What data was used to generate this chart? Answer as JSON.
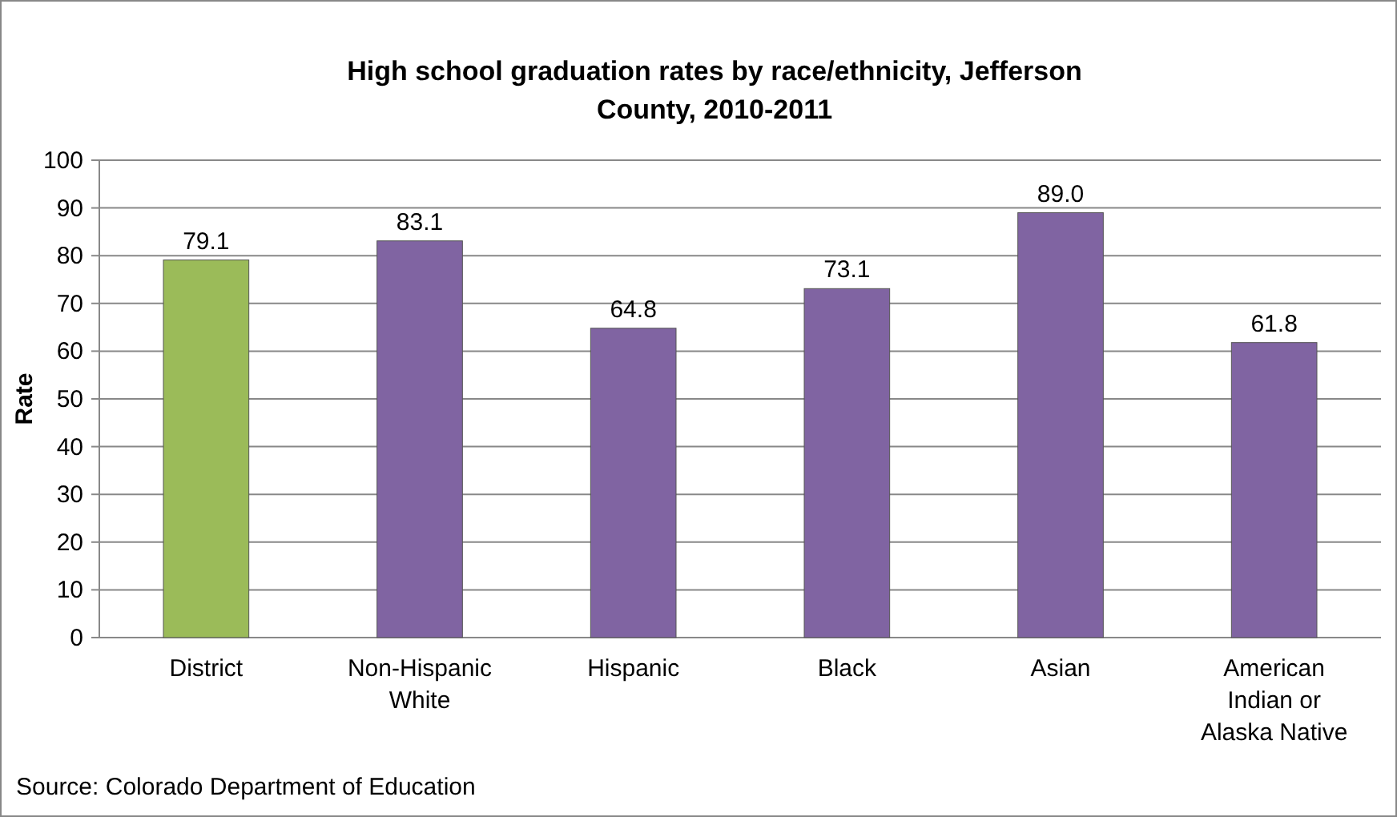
{
  "chart_data": {
    "type": "bar",
    "title": "High school graduation rates by race/ethnicity, Jefferson County, 2010-2011",
    "ylabel": "Rate",
    "categories": [
      "District",
      "Non-Hispanic White",
      "Hispanic",
      "Black",
      "Asian",
      "American Indian or Alaska Native"
    ],
    "values": [
      79.1,
      83.1,
      64.8,
      73.1,
      89.0,
      61.8
    ],
    "colors": [
      "#9bbb59",
      "#8064a2",
      "#8064a2",
      "#8064a2",
      "#8064a2",
      "#8064a2"
    ],
    "value_labels": [
      "79.1",
      "83.1",
      "64.8",
      "73.1",
      "89.0",
      "61.8"
    ],
    "ylim": [
      0,
      100
    ],
    "yticks": [
      0,
      10,
      20,
      30,
      40,
      50,
      60,
      70,
      80,
      90,
      100
    ],
    "grid": "y",
    "annotations": [
      "Source: Colorado Department of Education"
    ]
  }
}
